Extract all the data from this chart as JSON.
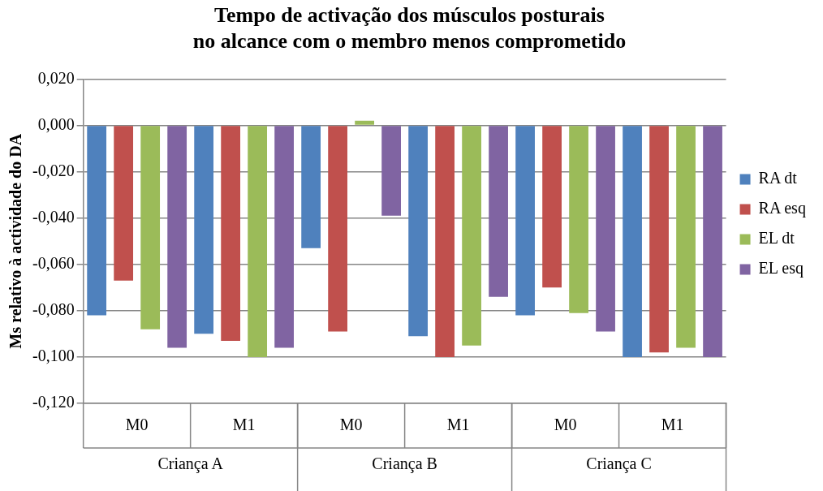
{
  "chart_data": {
    "type": "bar",
    "title": "Tempo de activação dos músculos posturais\nno alcance com o membro menos comprometido",
    "ylabel": "Ms relativo à actividade do DA",
    "categories": [
      "M0",
      "M1",
      "M0",
      "M1",
      "M0",
      "M1"
    ],
    "annotations": [
      "Criança A",
      "Criança B",
      "Criança C"
    ],
    "series": [
      {
        "name": "RA dt",
        "color": "#4f81bd",
        "values": [
          -0.082,
          -0.09,
          -0.053,
          -0.091,
          -0.082,
          -0.1
        ]
      },
      {
        "name": "RA esq",
        "color": "#c0504d",
        "values": [
          -0.067,
          -0.093,
          -0.089,
          -0.1,
          -0.07,
          -0.098
        ]
      },
      {
        "name": "EL dt",
        "color": "#9bbb59",
        "values": [
          -0.088,
          -0.1,
          0.002,
          -0.095,
          -0.081,
          -0.096
        ]
      },
      {
        "name": "EL esq",
        "color": "#8064a2",
        "values": [
          -0.096,
          -0.096,
          -0.039,
          -0.074,
          -0.089,
          -0.1
        ]
      }
    ],
    "ylim": [
      -0.12,
      0.02
    ],
    "yticks": [
      {
        "value": 0.02,
        "label": "0,020"
      },
      {
        "value": 0,
        "label": "0,000"
      },
      {
        "value": -0.02,
        "label": "-0,020"
      },
      {
        "value": -0.04,
        "label": "-0,040"
      },
      {
        "value": -0.06,
        "label": "-0,060"
      },
      {
        "value": -0.08,
        "label": "-0,080"
      },
      {
        "value": -0.1,
        "label": "-0,100"
      },
      {
        "value": -0.12,
        "label": "-0,120"
      }
    ],
    "grid": "y",
    "legend": "right"
  }
}
